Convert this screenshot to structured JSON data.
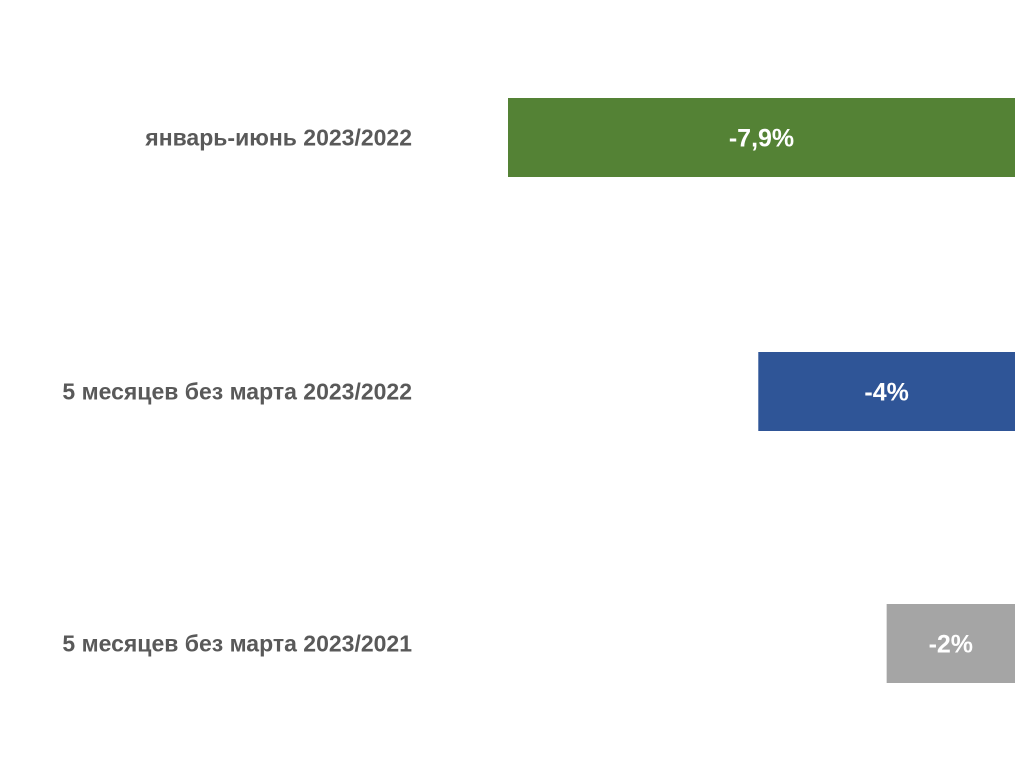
{
  "chart_data": {
    "type": "bar",
    "orientation": "horizontal",
    "categories": [
      "январь-июнь 2023/2022",
      "5 месяцев без марта 2023/2022",
      "5 месяцев без марта 2023/2021"
    ],
    "values": [
      -7.9,
      -4,
      -2
    ],
    "data_labels": [
      "-7,9%",
      "-4%",
      "-2%"
    ],
    "colors": [
      "#548235",
      "#2F5597",
      "#A5A5A5"
    ],
    "unit": "%",
    "xlim": [
      -7.9,
      0
    ],
    "grid": false,
    "legend": "none"
  }
}
